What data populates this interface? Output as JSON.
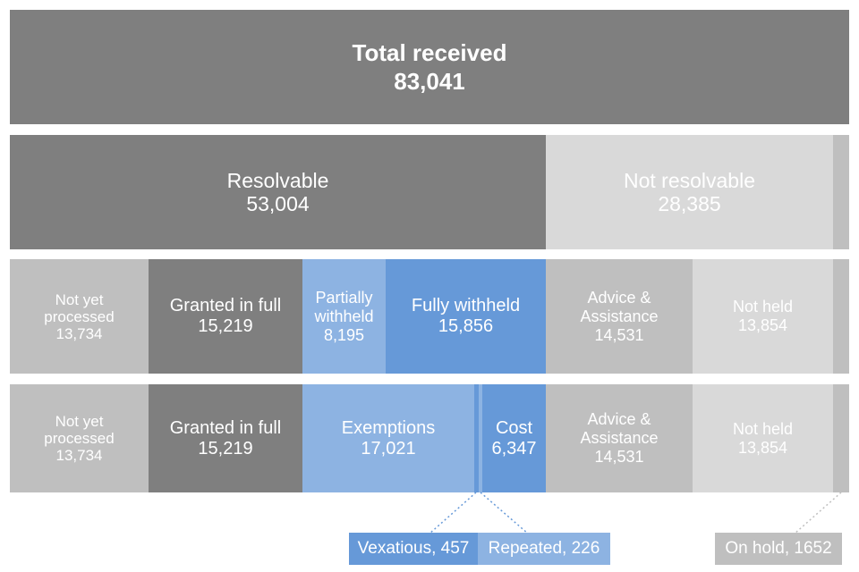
{
  "colors": {
    "dark": "#7f7f7f",
    "mid": "#bfbfbf",
    "light": "#d9d9d9",
    "blue_light": "#8db3e2",
    "blue": "#6699d8",
    "dotted": "#6699d8"
  },
  "total": {
    "label": "Total received",
    "value": "83,041"
  },
  "level1": {
    "resolvable": {
      "label": "Resolvable",
      "value": "53,004"
    },
    "not_resolvable": {
      "label": "Not resolvable",
      "value": "28,385"
    }
  },
  "level2": {
    "not_yet_processed": {
      "line1": "Not yet",
      "line2": "processed",
      "value": "13,734"
    },
    "granted_in_full": {
      "label": "Granted in full",
      "value": "15,219"
    },
    "partially_withheld": {
      "line1": "Partially",
      "line2": "withheld",
      "value": "8,195"
    },
    "fully_withheld": {
      "label": "Fully withheld",
      "value": "15,856"
    },
    "advice_assistance": {
      "line1": "Advice &",
      "line2": "Assistance",
      "value": "14,531"
    },
    "not_held": {
      "label": "Not held",
      "value": "13,854"
    }
  },
  "level3": {
    "not_yet_processed": {
      "line1": "Not yet",
      "line2": "processed",
      "value": "13,734"
    },
    "granted_in_full": {
      "label": "Granted in full",
      "value": "15,219"
    },
    "exemptions": {
      "label": "Exemptions",
      "value": "17,021"
    },
    "cost": {
      "label": "Cost",
      "value": "6,347"
    },
    "advice_assistance": {
      "line1": "Advice &",
      "line2": "Assistance",
      "value": "14,531"
    },
    "not_held": {
      "label": "Not held",
      "value": "13,854"
    }
  },
  "callouts": {
    "vexatious": "Vexatious, 457",
    "repeated": "Repeated, 226",
    "on_hold": "On hold, 1652"
  }
}
